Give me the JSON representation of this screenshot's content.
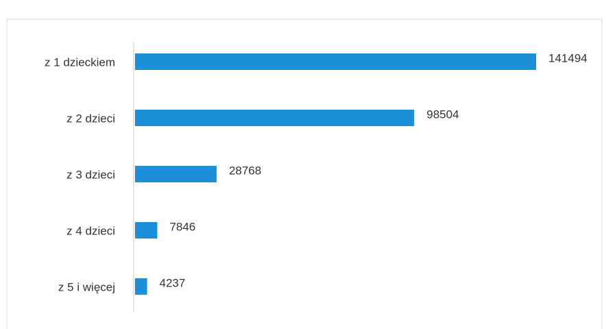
{
  "chart_data": {
    "type": "bar",
    "orientation": "horizontal",
    "categories": [
      "z 1 dzieckiem",
      "z 2 dzieci",
      "z 3 dzieci",
      "z 4 dzieci",
      "z 5 i więcej"
    ],
    "values": [
      141494,
      98504,
      28768,
      7846,
      4237
    ],
    "color": "#1b8fd8"
  }
}
